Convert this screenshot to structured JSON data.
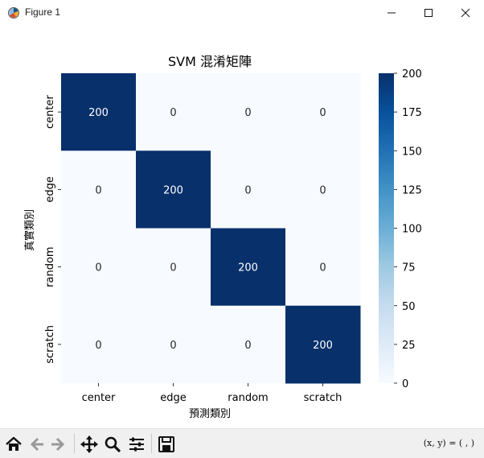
{
  "window": {
    "title": "Figure 1",
    "app_icon": "matplotlib-figure-icon",
    "controls": [
      "minimize-icon",
      "maximize-icon",
      "close-icon"
    ]
  },
  "chart_data": {
    "type": "heatmap",
    "title": "SVM 混淆矩陣",
    "xlabel": "預測類別",
    "ylabel": "真實類別",
    "x_categories": [
      "center",
      "edge",
      "random",
      "scratch"
    ],
    "y_categories": [
      "center",
      "edge",
      "random",
      "scratch"
    ],
    "values": [
      [
        200,
        0,
        0,
        0
      ],
      [
        0,
        200,
        0,
        0
      ],
      [
        0,
        0,
        200,
        0
      ],
      [
        0,
        0,
        0,
        200
      ]
    ],
    "annotations": true,
    "colormap": "Blues",
    "colors": {
      "low": "#f7fbff",
      "high": "#08306b",
      "annot_light": "#ffffff",
      "annot_dark": "#262626"
    },
    "colorbar": {
      "range": [
        0,
        200
      ],
      "ticks": [
        "0",
        "25",
        "50",
        "75",
        "100",
        "125",
        "150",
        "175",
        "200"
      ]
    },
    "grid": false,
    "legend": "colorbar-right"
  },
  "toolbar": {
    "buttons": [
      "home-icon",
      "back-icon",
      "forward-icon",
      "pan-icon",
      "zoom-icon",
      "configure-subplots-icon",
      "save-icon"
    ],
    "coords_text": "(x, y) = ( , )"
  }
}
